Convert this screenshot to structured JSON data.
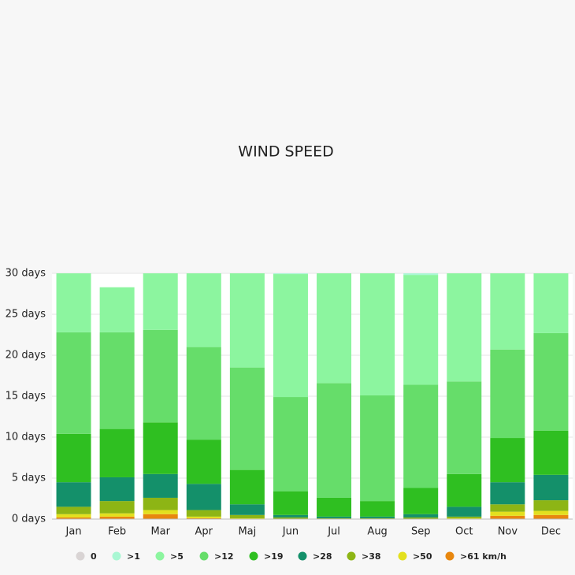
{
  "chart_data": {
    "type": "stacked-bar",
    "title": "WIND SPEED",
    "categories": [
      "Jan",
      "Feb",
      "Mar",
      "Apr",
      "Maj",
      "Jun",
      "Jul",
      "Aug",
      "Sep",
      "Oct",
      "Nov",
      "Dec"
    ],
    "series": [
      {
        "name": "0",
        "color": "#d9d4d4",
        "values": [
          0,
          0,
          0,
          0,
          0,
          0,
          0,
          0,
          0,
          0,
          0,
          0
        ]
      },
      {
        "name": ">1",
        "color": "#a9f7d3",
        "values": [
          0,
          0,
          0,
          0,
          0,
          0.1,
          0,
          0,
          0.2,
          0,
          0,
          0
        ]
      },
      {
        "name": ">5",
        "color": "#8cf59f",
        "values": [
          7.2,
          5.5,
          6.9,
          9.0,
          11.5,
          15.0,
          13.4,
          14.9,
          13.4,
          13.2,
          9.3,
          7.3
        ]
      },
      {
        "name": ">12",
        "color": "#66dd6a",
        "values": [
          12.4,
          11.8,
          11.3,
          11.3,
          12.5,
          11.5,
          14.0,
          12.9,
          12.6,
          11.3,
          10.8,
          11.9
        ]
      },
      {
        "name": ">19",
        "color": "#2fbf21",
        "values": [
          5.9,
          5.9,
          6.3,
          5.4,
          4.2,
          2.9,
          2.3,
          1.9,
          3.2,
          4.0,
          5.4,
          5.4
        ]
      },
      {
        "name": ">28",
        "color": "#14906a",
        "values": [
          3.0,
          2.9,
          2.9,
          3.2,
          1.3,
          0.3,
          0.2,
          0.2,
          0.4,
          1.2,
          2.7,
          3.1
        ]
      },
      {
        "name": ">38",
        "color": "#8db515",
        "values": [
          0.9,
          1.5,
          1.5,
          0.8,
          0.4,
          0.2,
          0.1,
          0.1,
          0.2,
          0.2,
          0.9,
          1.3
        ]
      },
      {
        "name": ">50",
        "color": "#e3e01e",
        "values": [
          0.4,
          0.4,
          0.5,
          0.2,
          0.1,
          0,
          0,
          0,
          0,
          0.1,
          0.5,
          0.5
        ]
      },
      {
        "name": ">61 km/h",
        "color": "#e8870f",
        "values": [
          0.2,
          0.3,
          0.6,
          0.1,
          0,
          0,
          0,
          0,
          0,
          0,
          0.4,
          0.5
        ]
      }
    ],
    "ylim": [
      0,
      30
    ],
    "yticks": [
      {
        "value": 0,
        "label": "0 days"
      },
      {
        "value": 5,
        "label": "5 days"
      },
      {
        "value": 10,
        "label": "10 days"
      },
      {
        "value": 15,
        "label": "15 days"
      },
      {
        "value": 20,
        "label": "20 days"
      },
      {
        "value": 25,
        "label": "25 days"
      },
      {
        "value": 30,
        "label": "30 days"
      }
    ],
    "grid": true
  }
}
